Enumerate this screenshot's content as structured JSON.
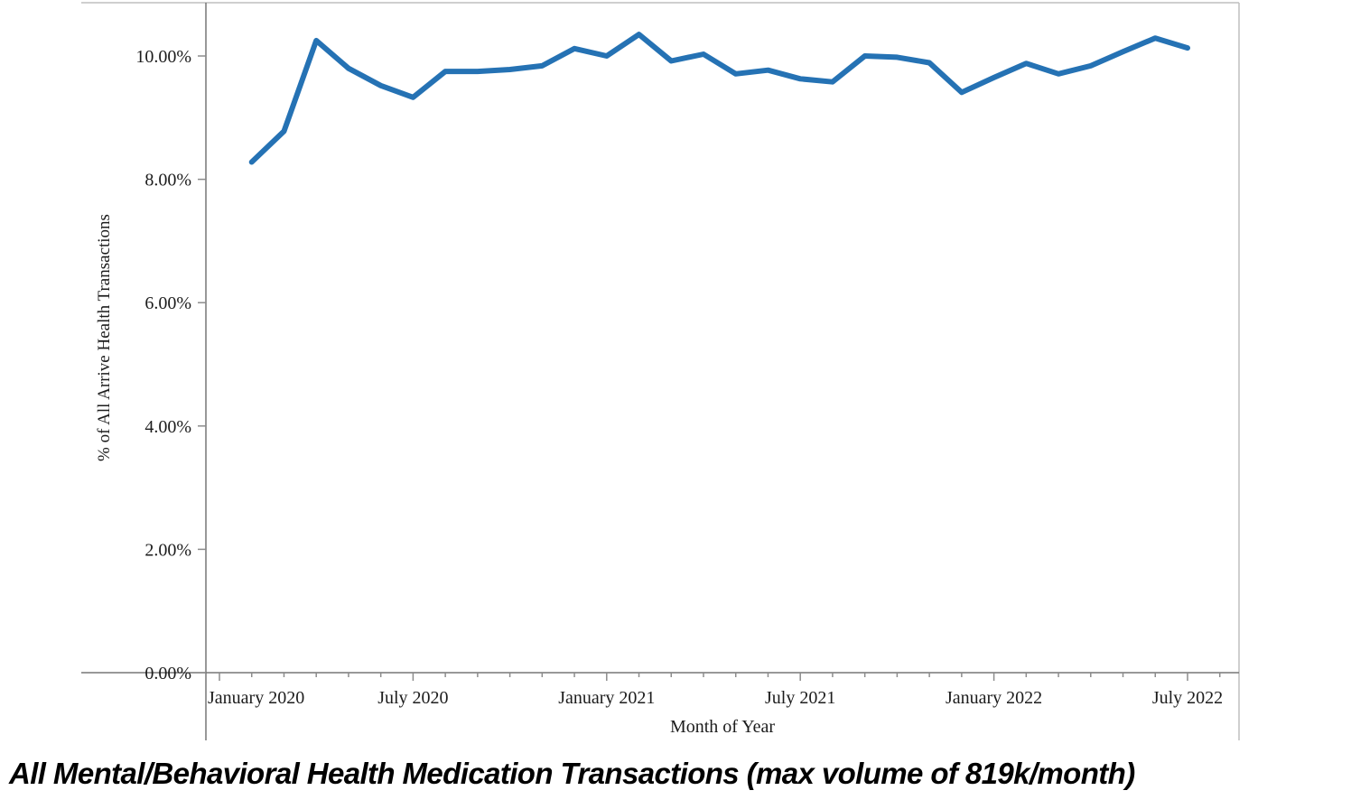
{
  "caption": {
    "text": "All Mental/Behavioral Health Medication Transactions (max volume of 819k/month)"
  },
  "chart_data": {
    "type": "line",
    "title": "",
    "xlabel": "Month of Year",
    "ylabel": "% of All Arrive Health Transactions",
    "grid": false,
    "legend": false,
    "x_axis": {
      "range_months": [
        "2020-01",
        "2022-08"
      ],
      "tick_interval": "1 month",
      "labeled_ticks": [
        "January 2020",
        "July 2020",
        "January 2021",
        "July 2021",
        "January 2022",
        "July 2022"
      ]
    },
    "y_axis": {
      "tick_labels": [
        "0.00%",
        "2.00%",
        "4.00%",
        "6.00%",
        "8.00%",
        "10.00%"
      ],
      "tick_values": [
        0,
        2,
        4,
        6,
        8,
        10
      ],
      "min": 0,
      "max": 10.87,
      "unit": "percent"
    },
    "series": [
      {
        "name": "% of All Arrive Health Transactions",
        "color": "#2572B4",
        "x": [
          "2020-02",
          "2020-03",
          "2020-04",
          "2020-05",
          "2020-06",
          "2020-07",
          "2020-08",
          "2020-09",
          "2020-10",
          "2020-11",
          "2020-12",
          "2021-01",
          "2021-02",
          "2021-03",
          "2021-04",
          "2021-05",
          "2021-06",
          "2021-07",
          "2021-08",
          "2021-09",
          "2021-10",
          "2021-11",
          "2021-12",
          "2022-01",
          "2022-02",
          "2022-03",
          "2022-04",
          "2022-05",
          "2022-06",
          "2022-07"
        ],
        "values": [
          8.28,
          8.78,
          10.25,
          9.8,
          9.52,
          9.33,
          9.75,
          9.75,
          9.78,
          9.84,
          10.12,
          10.0,
          10.35,
          9.92,
          10.03,
          9.71,
          9.77,
          9.63,
          9.58,
          10.0,
          9.98,
          9.89,
          9.41,
          9.65,
          9.88,
          9.71,
          9.84,
          10.07,
          10.29,
          10.13
        ]
      }
    ]
  }
}
